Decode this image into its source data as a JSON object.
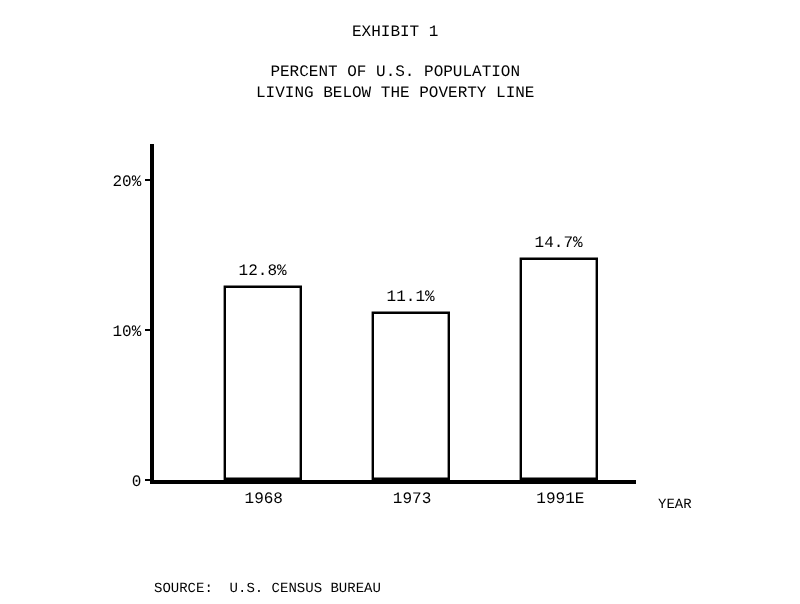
{
  "chart_data": {
    "type": "bar",
    "title": "EXHIBIT 1",
    "subtitle": "PERCENT OF U.S. POPULATION\nLIVING BELOW THE POVERTY LINE",
    "xlabel": "YEAR",
    "categories": [
      "1968",
      "1973",
      "1991E"
    ],
    "series": [
      {
        "color": "#ffffff",
        "values": [
          12.8,
          11.1,
          14.7
        ],
        "value_labels": [
          "12.8%",
          "11.1%",
          "14.7%"
        ]
      }
    ],
    "ylim": [
      0,
      22.4
    ],
    "yticks": [
      0,
      {
        "value": 10,
        "label": "10%"
      },
      {
        "value": 20,
        "label": "20%"
      }
    ],
    "annotations": [
      "SOURCE:  U.S. CENSUS BUREAU"
    ]
  }
}
